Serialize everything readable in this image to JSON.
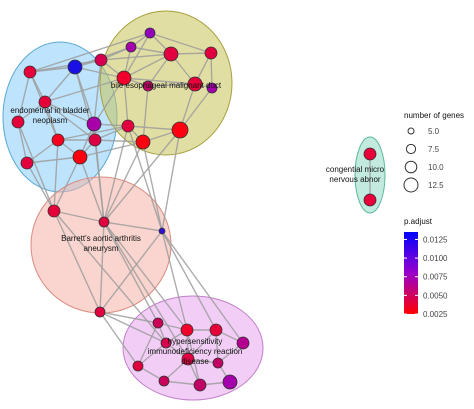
{
  "chart_data": {
    "type": "network",
    "title": "",
    "clusters": [
      {
        "id": "c1",
        "label": "endometrial in bladder neoplasm",
        "label_lines": [
          "endometrial in bladder",
          "neoplasm"
        ],
        "fill": "#87cefa",
        "stroke": "#5aa9d6"
      },
      {
        "id": "c2",
        "label": "bile esophageal malignant duct",
        "label_lines": [
          "bile esophageal malignant duct"
        ],
        "fill": "#c8c25a",
        "stroke": "#a59f3c"
      },
      {
        "id": "c3",
        "label": "Barrett's aortic arthritis aneurysm",
        "label_lines": [
          "Barrett's aortic arthritis",
          "aneurysm"
        ],
        "fill": "#f6b3a8",
        "stroke": "#d98b80"
      },
      {
        "id": "c4",
        "label": "hypersensitivity immunodeficiency reaction disease",
        "label_lines": [
          "hypersensitivity",
          "immunodeficiency reaction",
          "disease"
        ],
        "fill": "#e7a6ee",
        "stroke": "#c27fcb"
      },
      {
        "id": "c5",
        "label": "congential micro nervous abnor",
        "label_lines": [
          "congential micro",
          "nervous abnor"
        ],
        "fill": "#8fd9c3",
        "stroke": "#5ab89b"
      }
    ],
    "legend_size": {
      "title": "number of genes",
      "values": [
        5.0,
        7.5,
        10.0,
        12.5
      ],
      "labels": [
        "5.0",
        "7.5",
        "10.0",
        "12.5"
      ]
    },
    "legend_color": {
      "title": "p.adjust",
      "min": 0.0025,
      "max": 0.0135,
      "low_color": "#ff0000",
      "high_color": "#0000ff",
      "ticks": [
        0.0125,
        0.01,
        0.0075,
        0.005,
        0.0025
      ],
      "tick_labels": [
        "0.0125",
        "0.0100",
        "0.0075",
        "0.0050",
        "0.0025"
      ]
    }
  }
}
